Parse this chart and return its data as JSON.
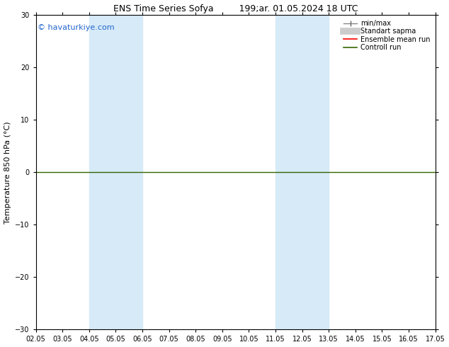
{
  "title": "ENS Time Series Sofya         199;ar. 01.05.2024 18 UTC",
  "ylabel": "Temperature 850 hPa (°C)",
  "xlabel": "",
  "ylim": [
    -30,
    30
  ],
  "yticks": [
    -30,
    -20,
    -10,
    0,
    10,
    20,
    30
  ],
  "xtick_labels": [
    "02.05",
    "03.05",
    "04.05",
    "05.05",
    "06.05",
    "07.05",
    "08.05",
    "09.05",
    "10.05",
    "11.05",
    "12.05",
    "13.05",
    "14.05",
    "15.05",
    "16.05",
    "17.05"
  ],
  "shaded_regions": [
    {
      "xstart": 2.0,
      "xend": 4.0,
      "color": "#d6eaf8"
    },
    {
      "xstart": 9.0,
      "xend": 11.0,
      "color": "#d6eaf8"
    }
  ],
  "hline_y": 0,
  "hline_color": "#336600",
  "hline_lw": 1.0,
  "background_color": "white",
  "plot_bg_color": "white",
  "watermark": "© havaturkiye.com",
  "watermark_color": "#2266cc",
  "watermark_fontsize": 8,
  "legend_items": [
    {
      "label": "min/max",
      "color": "#aaaaaa",
      "lw": 3,
      "linestyle": "-"
    },
    {
      "label": "Standart sapma",
      "color": "#cccccc",
      "lw": 7,
      "linestyle": "-"
    },
    {
      "label": "Ensemble mean run",
      "color": "red",
      "lw": 1.2,
      "linestyle": "-"
    },
    {
      "label": "Controll run",
      "color": "#336600",
      "lw": 1.2,
      "linestyle": "-"
    }
  ],
  "title_fontsize": 9,
  "tick_fontsize": 7,
  "ylabel_fontsize": 8,
  "legend_fontsize": 7
}
